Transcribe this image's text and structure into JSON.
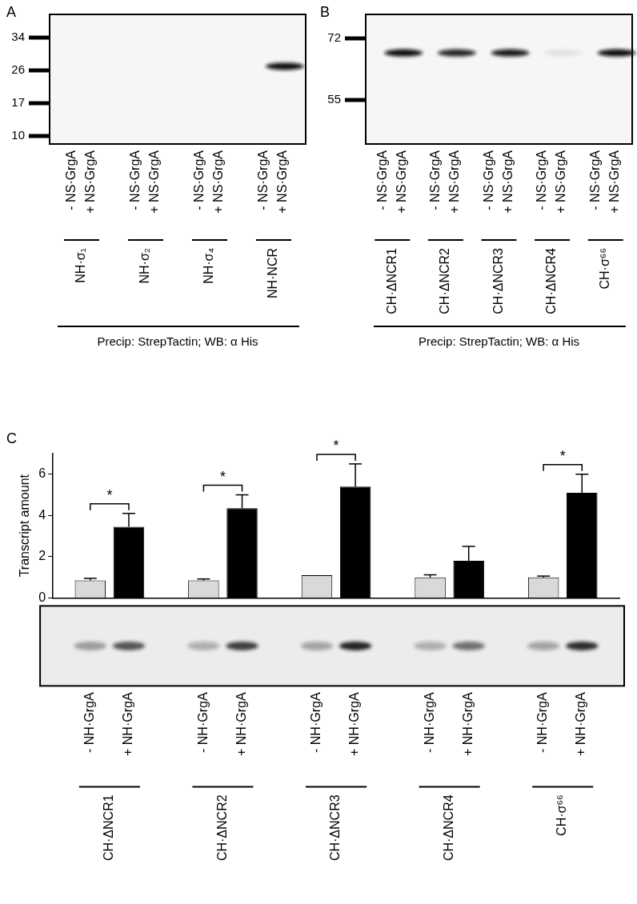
{
  "chart_data": {
    "type": "bar",
    "panel": "C",
    "y_label": "Transcript amount",
    "categories": [
      "CH·ΔNCR1",
      "CH·ΔNCR2",
      "CH·ΔNCR3",
      "CH·ΔNCR4",
      "CH·σ⁶⁶"
    ],
    "series": [
      {
        "name": "- NH·GrgA",
        "color": "#d9d9d9",
        "values": [
          0.85,
          0.85,
          1.1,
          1.0,
          1.0
        ],
        "error": [
          0.1,
          0.07,
          0,
          0.12,
          0.06
        ],
        "gel_intensity": [
          0.4,
          0.3,
          0.35,
          0.3,
          0.35
        ]
      },
      {
        "name": "+ NH·GrgA",
        "color": "#000000",
        "values": [
          3.45,
          4.35,
          5.4,
          1.8,
          5.1
        ],
        "error": [
          0.65,
          0.65,
          1.1,
          0.7,
          0.9
        ],
        "gel_intensity": [
          0.75,
          0.85,
          1.0,
          0.6,
          0.95
        ]
      }
    ],
    "ylim": [
      0,
      7
    ],
    "yticks": [
      0,
      2,
      4,
      6
    ],
    "grid": false,
    "significance": [
      {
        "category": "CH·ΔNCR1",
        "label": "*"
      },
      {
        "category": "CH·ΔNCR2",
        "label": "*"
      },
      {
        "category": "CH·ΔNCR3",
        "label": "*"
      },
      {
        "category": "CH·σ⁶⁶",
        "label": "*"
      }
    ]
  },
  "blots": [
    {
      "panel": "A",
      "markers_kDa": [
        34,
        26,
        17,
        10
      ],
      "band_kDa": 27,
      "groups": [
        {
          "label": "NH·σ₁",
          "lanes": [
            {
              "label": "- NS·GrgA",
              "band_intensity": 0
            },
            {
              "label": "+ NS·GrgA",
              "band_intensity": 0
            }
          ]
        },
        {
          "label": "NH·σ₂",
          "lanes": [
            {
              "label": "- NS·GrgA",
              "band_intensity": 0
            },
            {
              "label": "+ NS·GrgA",
              "band_intensity": 0
            }
          ]
        },
        {
          "label": "NH·σ₄",
          "lanes": [
            {
              "label": "- NS·GrgA",
              "band_intensity": 0
            },
            {
              "label": "+ NS·GrgA",
              "band_intensity": 0
            }
          ]
        },
        {
          "label": "NH·NCR",
          "lanes": [
            {
              "label": "- NS·GrgA",
              "band_intensity": 0
            },
            {
              "label": "+ NS·GrgA",
              "band_intensity": 1
            }
          ]
        }
      ],
      "caption": "Precip: StrepTactin; WB: α His"
    },
    {
      "panel": "B",
      "markers_kDa": [
        72,
        55
      ],
      "band_kDa": 68,
      "groups": [
        {
          "label": "CH·ΔNCR1",
          "lanes": [
            {
              "label": "- NS·GrgA",
              "band_intensity": 0
            },
            {
              "label": "+ NS·GrgA",
              "band_intensity": 1
            }
          ]
        },
        {
          "label": "CH·ΔNCR2",
          "lanes": [
            {
              "label": "- NS·GrgA",
              "band_intensity": 0
            },
            {
              "label": "+ NS·GrgA",
              "band_intensity": 0.9
            }
          ]
        },
        {
          "label": "CH·ΔNCR3",
          "lanes": [
            {
              "label": "- NS·GrgA",
              "band_intensity": 0
            },
            {
              "label": "+ NS·GrgA",
              "band_intensity": 0.95
            }
          ]
        },
        {
          "label": "CH·ΔNCR4",
          "lanes": [
            {
              "label": "- NS·GrgA",
              "band_intensity": 0
            },
            {
              "label": "+ NS·GrgA",
              "band_intensity": 0.08
            }
          ]
        },
        {
          "label": "CH·σ⁶⁶",
          "lanes": [
            {
              "label": "- NS·GrgA",
              "band_intensity": 0
            },
            {
              "label": "+ NS·GrgA",
              "band_intensity": 1
            }
          ]
        }
      ],
      "caption": "Precip: StrepTactin; WB: α His"
    }
  ]
}
